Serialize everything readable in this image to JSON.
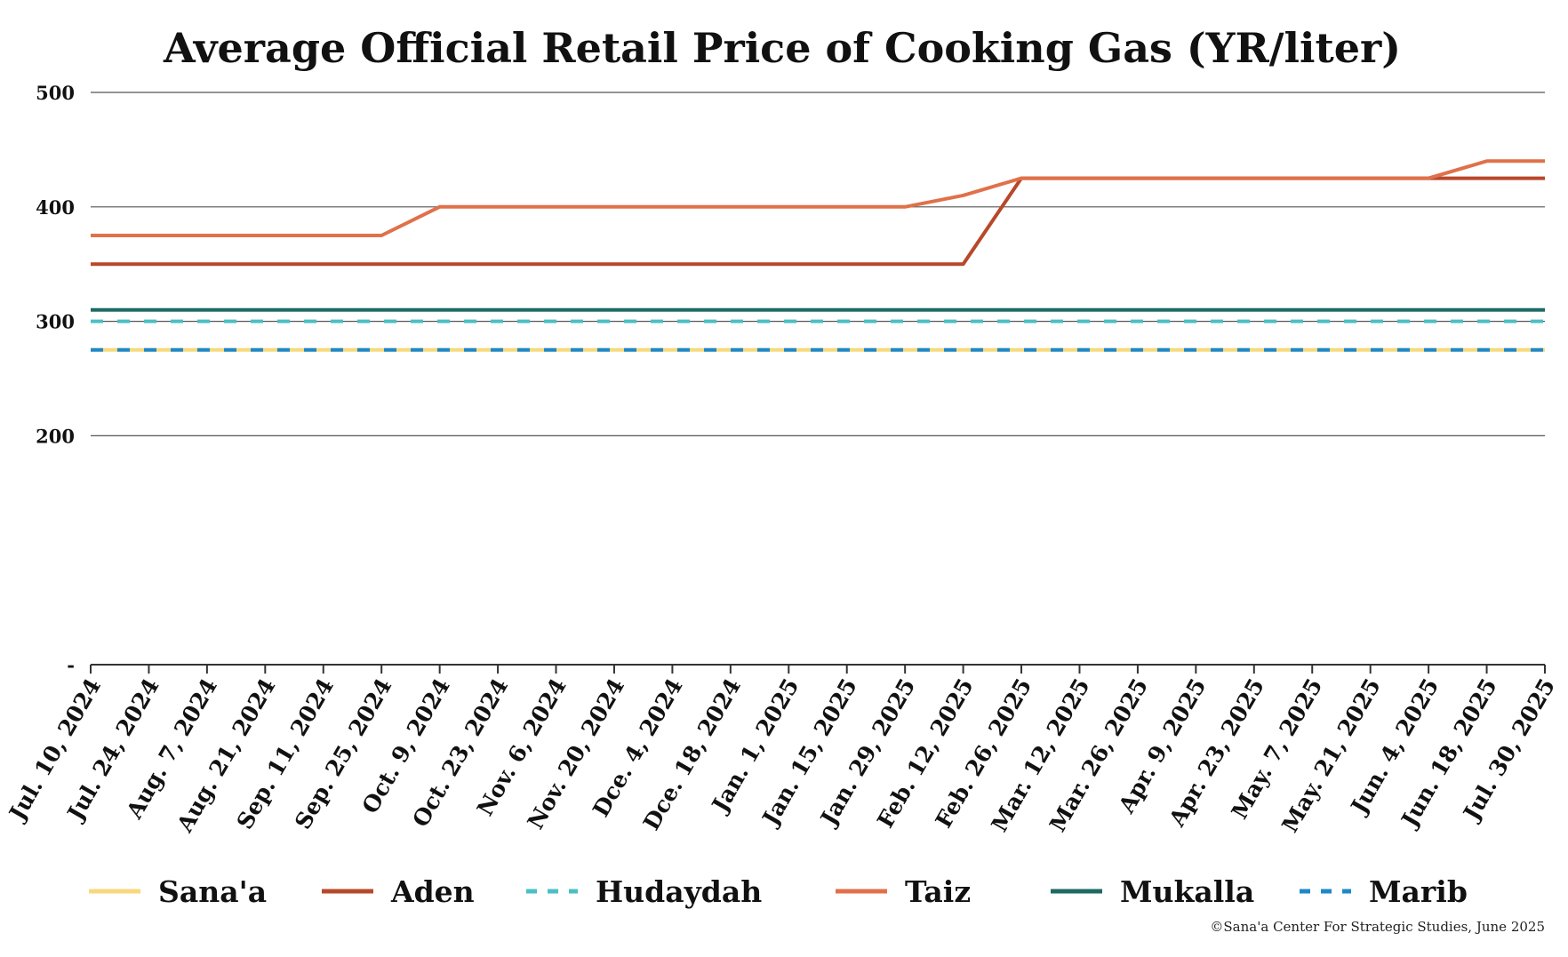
{
  "chart_data": {
    "type": "line",
    "title": "Average Official Retail Price of Cooking Gas (YR/liter)",
    "ylim": [
      0,
      500
    ],
    "yticks": [
      {
        "value": 0,
        "label": "-"
      },
      {
        "value": 200,
        "label": "200"
      },
      {
        "value": 300,
        "label": "300"
      },
      {
        "value": 400,
        "label": "400"
      },
      {
        "value": 500,
        "label": "500"
      }
    ],
    "x_labels": [
      "Jul. 10, 2024",
      "Jul. 24, 2024",
      "Aug. 7, 2024",
      "Aug. 21, 2024",
      "Sep. 11, 2024",
      "Sep. 25, 2024",
      "Oct. 9, 2024",
      "Oct. 23, 2024",
      "Nov. 6, 2024",
      "Nov. 20, 2024",
      "Dce. 4, 2024",
      "Dce. 18, 2024",
      "Jan. 1, 2025",
      "Jan. 15, 2025",
      "Jan. 29, 2025",
      "Feb. 12, 2025",
      "Feb. 26, 2025",
      "Mar. 12, 2025",
      "Mar. 26, 2025",
      "Apr. 9, 2025",
      "Apr. 23, 2025",
      "May. 7, 2025",
      "May. 21, 2025",
      "Jun. 4, 2025",
      "Jun. 18, 2025",
      "Jul. 30, 2025"
    ],
    "grid": true,
    "legend_position": "bottom",
    "series": [
      {
        "name": "Sana'a",
        "color": "#F7D87C",
        "dash": "solid",
        "points": [
          [
            "Jul. 10, 2024",
            275
          ],
          [
            "Jul. 30, 2025",
            275
          ]
        ]
      },
      {
        "name": "Aden",
        "color": "#B8482A",
        "dash": "solid",
        "points": [
          [
            "Jul. 10, 2024",
            350
          ],
          [
            "Feb. 12, 2025",
            350
          ],
          [
            "Feb. 26, 2025",
            425
          ],
          [
            "Jul. 30, 2025",
            425
          ]
        ]
      },
      {
        "name": "Hudaydah",
        "color": "#4BBFC4",
        "dash": "dashed",
        "points": [
          [
            "Jul. 10, 2024",
            300
          ],
          [
            "Jul. 30, 2025",
            300
          ]
        ]
      },
      {
        "name": "Taiz",
        "color": "#E0714A",
        "dash": "solid",
        "points": [
          [
            "Jul. 10, 2024",
            375
          ],
          [
            "Sep. 25, 2024",
            375
          ],
          [
            "Oct. 9, 2024",
            400
          ],
          [
            "Jan. 29, 2025",
            400
          ],
          [
            "Feb. 12, 2025",
            410
          ],
          [
            "Feb. 26, 2025",
            425
          ],
          [
            "Jun. 4, 2025",
            425
          ],
          [
            "Jun. 18, 2025",
            440
          ],
          [
            "Jul. 30, 2025",
            440
          ]
        ]
      },
      {
        "name": "Mukalla",
        "color": "#1C6A64",
        "dash": "solid",
        "points": [
          [
            "Jul. 10, 2024",
            310
          ],
          [
            "Jul. 30, 2025",
            310
          ]
        ]
      },
      {
        "name": "Marib",
        "color": "#1E88C8",
        "dash": "dashed",
        "points": [
          [
            "Jul. 10, 2024",
            275
          ],
          [
            "Jul. 30, 2025",
            275
          ]
        ]
      }
    ],
    "source_note": "©Sana'a Center For Strategic Studies, June 2025"
  }
}
